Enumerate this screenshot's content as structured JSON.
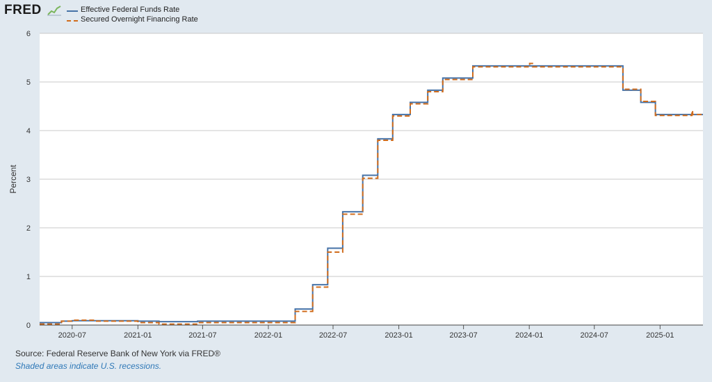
{
  "header": {
    "logo_text": "FRED"
  },
  "colors": {
    "background": "#e1e9f0",
    "plot_background": "#ffffff",
    "grid": "#c8c8c8",
    "series_1": "#4572a7",
    "series_2": "#d06c1c"
  },
  "icons": {
    "logo_graph": "fred-graph-icon"
  },
  "chart_data": {
    "type": "line",
    "ylabel": "Percent",
    "ylim": [
      0,
      6
    ],
    "yticks": [
      "0",
      "1",
      "2",
      "3",
      "4",
      "5",
      "6"
    ],
    "xlim": [
      "2020-04-01",
      "2025-05-01"
    ],
    "xticks": [
      {
        "date": "2020-07-01",
        "label": "2020-07"
      },
      {
        "date": "2021-01-01",
        "label": "2021-01"
      },
      {
        "date": "2021-07-01",
        "label": "2021-07"
      },
      {
        "date": "2022-01-01",
        "label": "2022-01"
      },
      {
        "date": "2022-07-01",
        "label": "2022-07"
      },
      {
        "date": "2023-01-01",
        "label": "2023-01"
      },
      {
        "date": "2023-07-01",
        "label": "2023-07"
      },
      {
        "date": "2024-01-01",
        "label": "2024-01"
      },
      {
        "date": "2024-07-01",
        "label": "2024-07"
      },
      {
        "date": "2025-01-01",
        "label": "2025-01"
      }
    ],
    "grid": true,
    "legend_position": "top-left",
    "series": [
      {
        "name": "Effective Federal Funds Rate",
        "style": "solid",
        "step": true,
        "points": [
          [
            "2020-04-01",
            0.05
          ],
          [
            "2020-06-01",
            0.08
          ],
          [
            "2020-07-01",
            0.09
          ],
          [
            "2020-09-01",
            0.09
          ],
          [
            "2021-01-01",
            0.08
          ],
          [
            "2021-03-01",
            0.07
          ],
          [
            "2021-06-17",
            0.08
          ],
          [
            "2021-10-01",
            0.08
          ],
          [
            "2022-03-17",
            0.33
          ],
          [
            "2022-05-05",
            0.83
          ],
          [
            "2022-06-16",
            1.58
          ],
          [
            "2022-07-28",
            2.33
          ],
          [
            "2022-09-22",
            3.08
          ],
          [
            "2022-11-03",
            3.83
          ],
          [
            "2022-12-15",
            4.33
          ],
          [
            "2023-02-02",
            4.58
          ],
          [
            "2023-03-23",
            4.83
          ],
          [
            "2023-05-04",
            5.08
          ],
          [
            "2023-07-27",
            5.33
          ],
          [
            "2024-09-19",
            4.83
          ],
          [
            "2024-11-08",
            4.58
          ],
          [
            "2024-12-19",
            4.33
          ],
          [
            "2025-05-01",
            4.33
          ]
        ]
      },
      {
        "name": "Secured Overnight Financing Rate",
        "style": "dashed",
        "step": true,
        "points": [
          [
            "2020-04-01",
            0.02
          ],
          [
            "2020-06-01",
            0.08
          ],
          [
            "2020-07-01",
            0.1
          ],
          [
            "2020-09-01",
            0.08
          ],
          [
            "2021-01-01",
            0.05
          ],
          [
            "2021-03-01",
            0.02
          ],
          [
            "2021-06-17",
            0.05
          ],
          [
            "2021-10-01",
            0.05
          ],
          [
            "2022-03-17",
            0.28
          ],
          [
            "2022-05-05",
            0.78
          ],
          [
            "2022-06-16",
            1.5
          ],
          [
            "2022-07-28",
            2.28
          ],
          [
            "2022-09-22",
            3.02
          ],
          [
            "2022-11-03",
            3.8
          ],
          [
            "2022-12-15",
            4.3
          ],
          [
            "2023-02-02",
            4.55
          ],
          [
            "2023-03-23",
            4.8
          ],
          [
            "2023-05-04",
            5.05
          ],
          [
            "2023-07-27",
            5.31
          ],
          [
            "2024-01-02",
            5.38
          ],
          [
            "2024-01-10",
            5.31
          ],
          [
            "2024-09-19",
            4.85
          ],
          [
            "2024-11-08",
            4.6
          ],
          [
            "2024-12-19",
            4.31
          ],
          [
            "2025-03-31",
            4.41
          ],
          [
            "2025-04-02",
            4.33
          ],
          [
            "2025-05-01",
            4.31
          ]
        ]
      }
    ]
  },
  "footer": {
    "source": "Source: Federal Reserve Bank of New York via FRED®",
    "note": "Shaded areas indicate U.S. recessions."
  }
}
